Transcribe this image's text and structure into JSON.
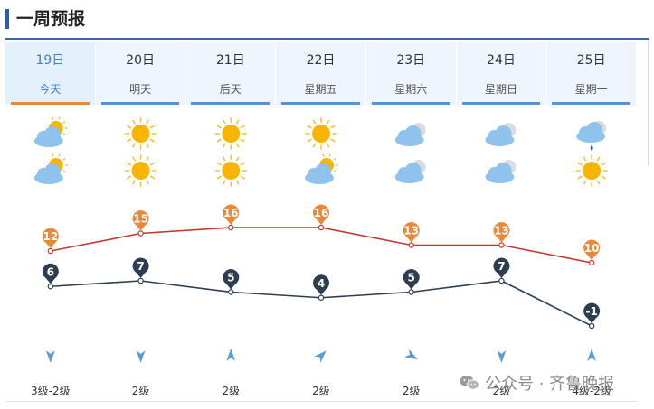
{
  "header": {
    "title": "一周预报"
  },
  "days": [
    {
      "date": "19日",
      "label": "今天",
      "day_icon": "partly-cloudy-icon",
      "night_icon": "partly-cloudy-icon",
      "high": 12,
      "low": 6,
      "wind_dir": "down",
      "wind": "3级-2级"
    },
    {
      "date": "20日",
      "label": "明天",
      "day_icon": "sun-icon",
      "night_icon": "sun-icon",
      "high": 15,
      "low": 7,
      "wind_dir": "down",
      "wind": "2级"
    },
    {
      "date": "21日",
      "label": "后天",
      "day_icon": "sun-icon",
      "night_icon": "sun-icon",
      "high": 16,
      "low": 5,
      "wind_dir": "up",
      "wind": "2级"
    },
    {
      "date": "22日",
      "label": "星期五",
      "day_icon": "sun-icon",
      "night_icon": "partly-cloudy-icon",
      "high": 16,
      "low": 4,
      "wind_dir": "up-right",
      "wind": "2级"
    },
    {
      "date": "23日",
      "label": "星期六",
      "day_icon": "cloudy-icon",
      "night_icon": "cloudy-icon",
      "high": 13,
      "low": 5,
      "wind_dir": "down-right",
      "wind": "2级"
    },
    {
      "date": "24日",
      "label": "星期日",
      "day_icon": "cloudy-icon",
      "night_icon": "cloudy-icon",
      "high": 13,
      "low": 7,
      "wind_dir": "down",
      "wind": "2级"
    },
    {
      "date": "25日",
      "label": "星期一",
      "day_icon": "rain-cloud-icon",
      "night_icon": "sun-icon",
      "high": 10,
      "low": -1,
      "wind_dir": "up",
      "wind": "4级-2级"
    }
  ],
  "colors": {
    "accent": "#2a5ca8",
    "tab_bar": "#5b8fd6",
    "today_bar": "#e8893a",
    "high_line": "#c0392b",
    "high_marker": "#e8893a",
    "low_line": "#2c3e50",
    "low_marker": "#2c3e50",
    "wind_arrow": "#5b9bd5"
  },
  "watermark": {
    "text": "公众号 · 齐鲁晚报"
  }
}
